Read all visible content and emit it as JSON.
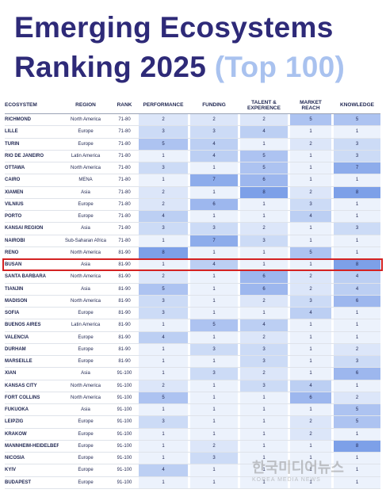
{
  "header": {
    "title": "Emerging Ecosystems Ranking 2025",
    "title_highlight": "(Top 100)"
  },
  "table": {
    "columns": [
      "ECOSYSTEM",
      "REGION",
      "RANK",
      "PERFORMANCE",
      "FUNDING",
      "TALENT & EXPERIENCE",
      "MARKET REACH",
      "KNOWLEDGE"
    ],
    "highlight_row": 12,
    "rows": [
      [
        "RICHMOND",
        "North America",
        "71-80",
        2,
        2,
        2,
        5,
        5
      ],
      [
        "LILLE",
        "Europe",
        "71-80",
        3,
        3,
        4,
        1,
        1
      ],
      [
        "TURIN",
        "Europe",
        "71-80",
        5,
        4,
        1,
        2,
        3
      ],
      [
        "RIO DE JANEIRO",
        "Latin America",
        "71-80",
        1,
        4,
        5,
        1,
        3
      ],
      [
        "OTTAWA",
        "North America",
        "71-80",
        3,
        1,
        5,
        1,
        7
      ],
      [
        "CAIRO",
        "MENA",
        "71-80",
        1,
        7,
        6,
        1,
        1
      ],
      [
        "XIAMEN",
        "Asia",
        "71-80",
        2,
        1,
        8,
        2,
        8
      ],
      [
        "VILNIUS",
        "Europe",
        "71-80",
        2,
        6,
        1,
        3,
        1
      ],
      [
        "PORTO",
        "Europe",
        "71-80",
        4,
        1,
        1,
        4,
        1
      ],
      [
        "KANSAI REGION",
        "Asia",
        "71-80",
        3,
        3,
        2,
        1,
        3
      ],
      [
        "NAIROBI",
        "Sub-Saharan Africa",
        "71-80",
        1,
        7,
        3,
        1,
        1
      ],
      [
        "RENO",
        "North America",
        "81-90",
        8,
        1,
        1,
        5,
        1
      ],
      [
        "BUSAN",
        "Asia",
        "81-90",
        1,
        4,
        1,
        1,
        8
      ],
      [
        "SANTA BARBARA",
        "North America",
        "81-90",
        2,
        1,
        6,
        2,
        4
      ],
      [
        "TIANJIN",
        "Asia",
        "81-90",
        5,
        1,
        6,
        2,
        4
      ],
      [
        "MADISON",
        "North America",
        "81-90",
        3,
        1,
        2,
        3,
        6
      ],
      [
        "SOFIA",
        "Europe",
        "81-90",
        3,
        1,
        1,
        4,
        1
      ],
      [
        "BUENOS AIRES",
        "Latin America",
        "81-90",
        1,
        5,
        4,
        1,
        1
      ],
      [
        "VALENCIA",
        "Europe",
        "81-90",
        4,
        1,
        2,
        1,
        1
      ],
      [
        "DURHAM",
        "Europe",
        "81-90",
        1,
        3,
        3,
        1,
        2
      ],
      [
        "MARSEILLE",
        "Europe",
        "81-90",
        1,
        1,
        3,
        1,
        3
      ],
      [
        "XIAN",
        "Asia",
        "91-100",
        1,
        3,
        2,
        1,
        6
      ],
      [
        "KANSAS CITY",
        "North America",
        "91-100",
        2,
        1,
        3,
        4,
        1
      ],
      [
        "FORT COLLINS",
        "North America",
        "91-100",
        5,
        1,
        1,
        6,
        2
      ],
      [
        "FUKUOKA",
        "Asia",
        "91-100",
        1,
        1,
        1,
        1,
        5
      ],
      [
        "LEIPZIG",
        "Europe",
        "91-100",
        3,
        1,
        1,
        2,
        5
      ],
      [
        "KRAKOW",
        "Europe",
        "91-100",
        1,
        1,
        1,
        2,
        1
      ],
      [
        "MANNHEIM-HEIDELBERG",
        "Europe",
        "91-100",
        1,
        2,
        1,
        1,
        8
      ],
      [
        "NICOSIA",
        "Europe",
        "91-100",
        1,
        3,
        1,
        1,
        1
      ],
      [
        "KYIV",
        "Europe",
        "91-100",
        4,
        1,
        1,
        1,
        1
      ],
      [
        "BUDAPEST",
        "Europe",
        "91-100",
        1,
        1,
        1,
        1,
        1
      ]
    ]
  },
  "watermark": {
    "text": "한국미디어뉴스",
    "subtext": "KOREA MEDIA NEWS"
  }
}
